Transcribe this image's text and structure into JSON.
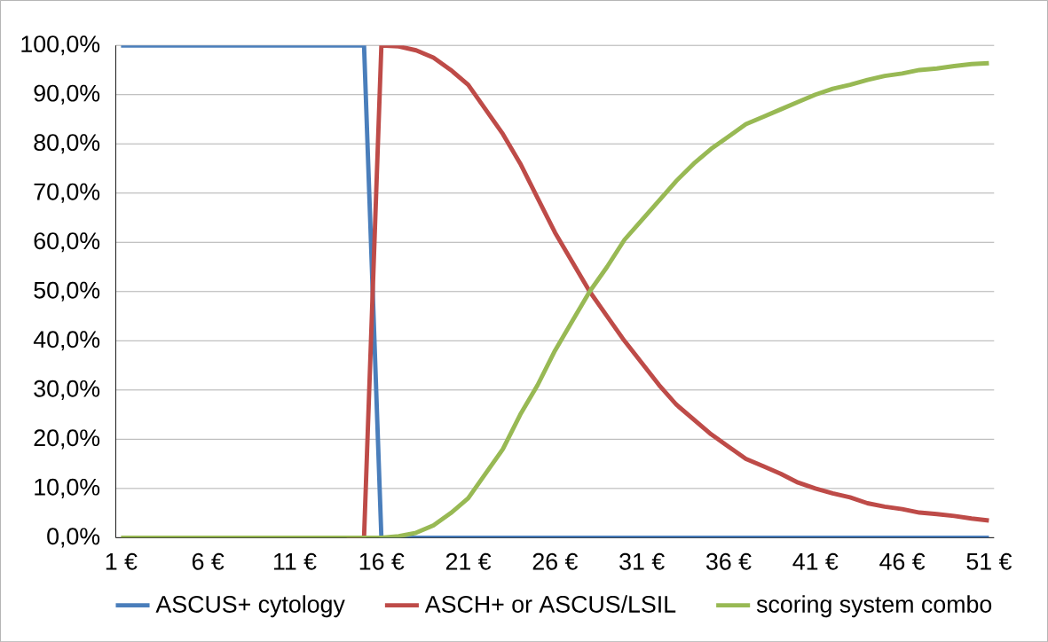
{
  "chart_data": {
    "type": "line",
    "categories": [
      "1 €",
      null,
      null,
      null,
      null,
      "6 €",
      null,
      null,
      null,
      null,
      "11 €",
      null,
      null,
      null,
      null,
      "16 €",
      null,
      null,
      null,
      null,
      "21 €",
      null,
      null,
      null,
      null,
      "26 €",
      null,
      null,
      null,
      null,
      "31 €",
      null,
      null,
      null,
      null,
      "36 €",
      null,
      null,
      null,
      null,
      "41 €",
      null,
      null,
      null,
      null,
      "46 €",
      null,
      null,
      null,
      null,
      "51 €"
    ],
    "series": [
      {
        "name": "ASCUS+ cytology",
        "color": "#4a7ebb",
        "values": [
          100,
          100,
          100,
          100,
          100,
          100,
          100,
          100,
          100,
          100,
          100,
          100,
          100,
          100,
          100,
          0,
          0,
          0,
          0,
          0,
          0,
          0,
          0,
          0,
          0,
          0,
          0,
          0,
          0,
          0,
          0,
          0,
          0,
          0,
          0,
          0,
          0,
          0,
          0,
          0,
          0,
          0,
          0,
          0,
          0,
          0,
          0,
          0,
          0,
          0,
          0
        ]
      },
      {
        "name": "ASCH+ or ASCUS/LSIL",
        "color": "#be4b48",
        "values": [
          null,
          null,
          null,
          null,
          null,
          null,
          null,
          null,
          null,
          null,
          null,
          null,
          null,
          0,
          0,
          100,
          99.8,
          99,
          97.5,
          95,
          92,
          87,
          82,
          76,
          69,
          62,
          56,
          50,
          45,
          40,
          35.5,
          31,
          27,
          24,
          21,
          18.5,
          16,
          14.5,
          13,
          11.2,
          10,
          9,
          8.2,
          7,
          6.3,
          5.8,
          5.1,
          4.8,
          4.4,
          3.9,
          3.5
        ]
      },
      {
        "name": "scoring system combo",
        "color": "#98b954",
        "values": [
          0,
          0,
          0,
          0,
          0,
          0,
          0,
          0,
          0,
          0,
          0,
          0,
          0,
          0,
          0,
          0,
          0.3,
          1,
          2.5,
          5,
          8,
          13,
          18,
          25,
          31,
          38,
          44,
          50,
          55,
          60.5,
          64.5,
          68.5,
          72.5,
          76,
          79,
          81.5,
          84,
          85.5,
          87,
          88.5,
          90,
          91.2,
          92,
          93,
          93.8,
          94.3,
          95,
          95.3,
          95.8,
          96.2,
          96.4
        ]
      }
    ],
    "ylim": [
      0,
      100
    ],
    "yticks": [
      {
        "value": 0,
        "label": "0,0%"
      },
      {
        "value": 10,
        "label": "10,0%"
      },
      {
        "value": 20,
        "label": "20,0%"
      },
      {
        "value": 30,
        "label": "30,0%"
      },
      {
        "value": 40,
        "label": "40,0%"
      },
      {
        "value": 50,
        "label": "50,0%"
      },
      {
        "value": 60,
        "label": "60,0%"
      },
      {
        "value": 70,
        "label": "70,0%"
      },
      {
        "value": 80,
        "label": "80,0%"
      },
      {
        "value": 90,
        "label": "90,0%"
      },
      {
        "value": 100,
        "label": "100,0%"
      }
    ],
    "grid": "y",
    "legend": "bottom",
    "marker": "none",
    "line_style": "solid"
  }
}
